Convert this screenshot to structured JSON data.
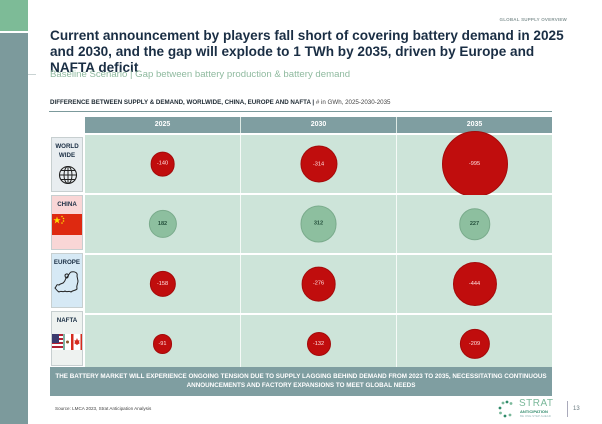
{
  "section_tag": "GLOBAL SUPPLY OVERVIEW",
  "title": "Current announcement by players fall short of covering battery demand in 2025 and 2030, and the gap will explode to 1 TWh by 2035, driven by Europe and NAFTA deficit",
  "subtitle": "Baseline Scenario | Gap between battery production & battery demand",
  "chart_label": {
    "main": "DIFFERENCE BETWEEN SUPPLY & DEMAND, WORLWIDE, CHINA, EUROPE AND NAFTA | ",
    "unit": "# in GWh, 2025-2030-2035"
  },
  "chart_data": {
    "type": "bubble-table",
    "title": "DIFFERENCE BETWEEN SUPPLY & DEMAND, WORLWIDE, CHINA, EUROPE AND NAFTA",
    "unit": "GWh",
    "columns": [
      "2025",
      "2030",
      "2035"
    ],
    "rows": [
      {
        "label": "WORLD WIDE",
        "icon": "globe-icon",
        "values": [
          -140,
          -314,
          -995
        ]
      },
      {
        "label": "CHINA",
        "icon": "china-flag-icon",
        "values": [
          182,
          312,
          227
        ]
      },
      {
        "label": "EUROPE",
        "icon": "europe-map-icon",
        "values": [
          -158,
          -276,
          -444
        ]
      },
      {
        "label": "NAFTA",
        "icon": "nafta-flags-icon",
        "values": [
          -91,
          -132,
          -209
        ]
      }
    ],
    "colors": {
      "negative": "#c00d0d",
      "positive": "#8dbf9f"
    }
  },
  "banner": "THE BATTERY MARKET WILL EXPERIENCE ONGOING TENSION DUE TO SUPPLY LAGGING BEHIND DEMAND FROM 2023 TO 2035, NECESSITATING CONTINUOUS ANNOUNCEMENTS AND FACTORY EXPANSIONS TO MEET GLOBAL NEEDS",
  "source": "Source: LMCA 2023, Strat Anticipation Analysis",
  "logo": {
    "name": "STRAT",
    "sub": "ANTICIPATION",
    "tagline": "BE ONE STEP AHEAD"
  },
  "page_number": "13"
}
